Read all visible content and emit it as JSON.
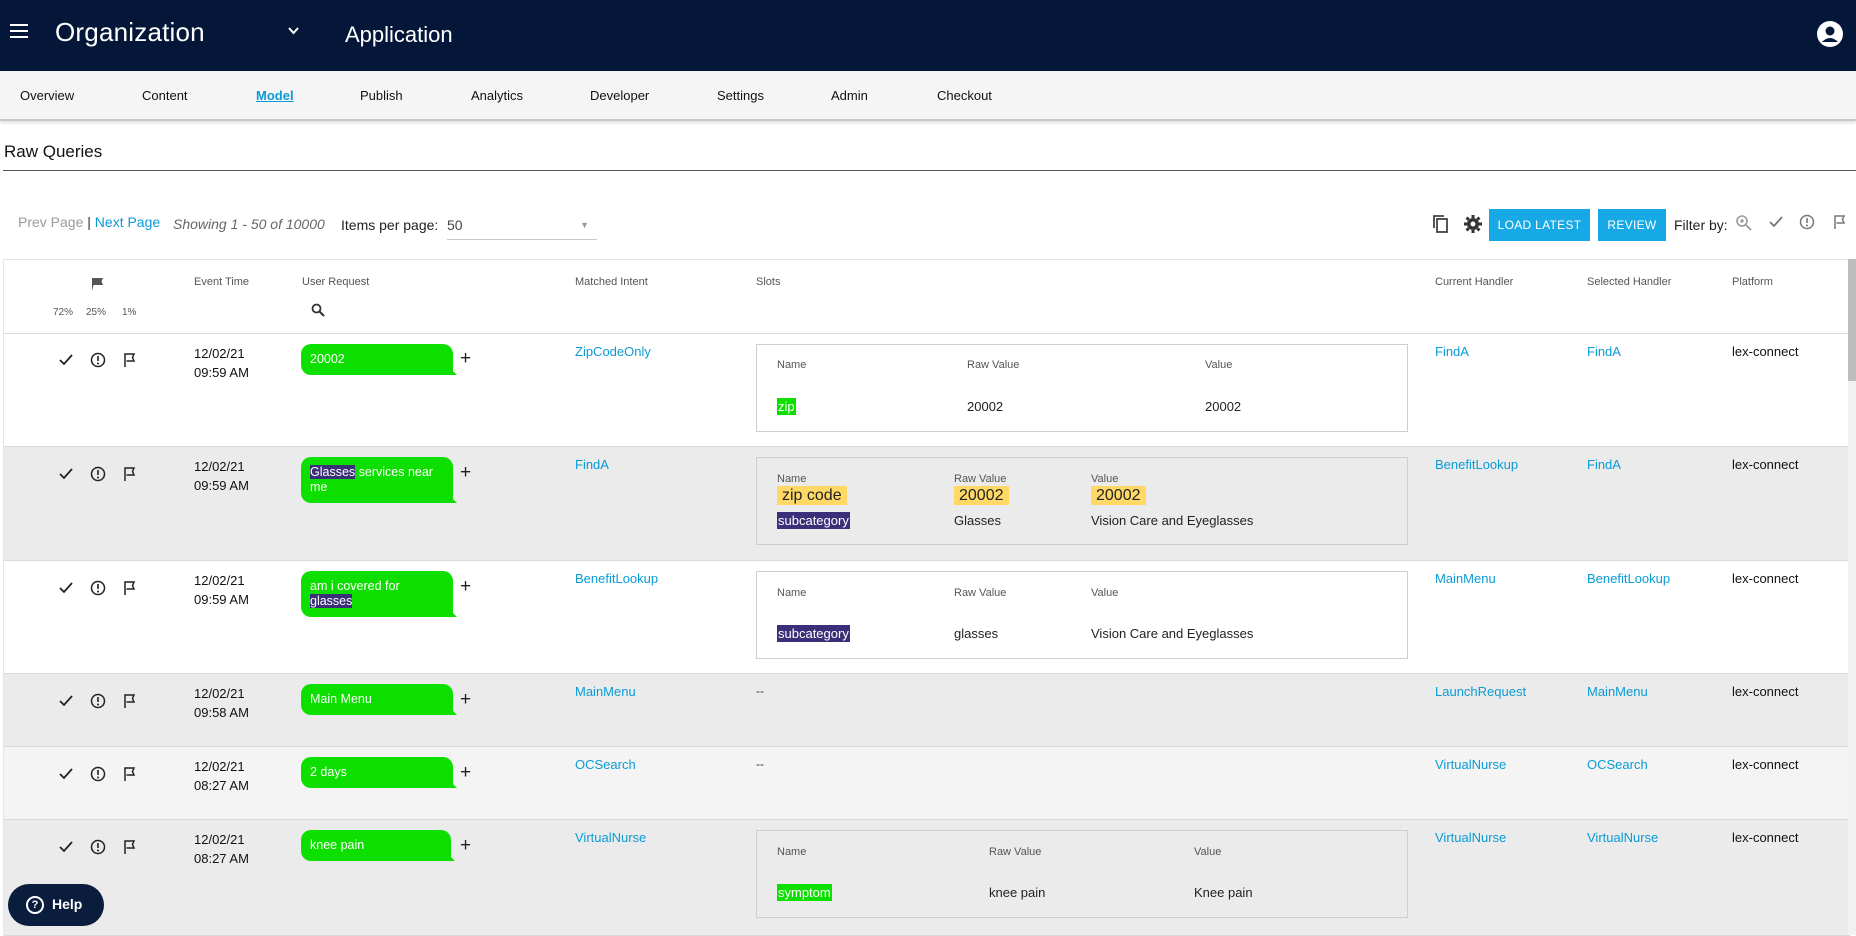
{
  "header": {
    "organization": "Organization",
    "application": "Application"
  },
  "nav": {
    "items": [
      "Overview",
      "Content",
      "Model",
      "Publish",
      "Analytics",
      "Developer",
      "Settings",
      "Admin",
      "Checkout"
    ],
    "active": "Model"
  },
  "page": {
    "title": "Raw Queries"
  },
  "toolbar": {
    "prev_label": "Prev Page",
    "separator": "|",
    "next_label": "Next Page",
    "showing": "Showing 1 - 50 of 10000",
    "items_per_page_label": "Items per page:",
    "items_per_page_value": "50",
    "load_latest_label": "LOAD LATEST",
    "review_label": "REVIEW",
    "filter_label": "Filter by:"
  },
  "table": {
    "headers": {
      "event_time": "Event Time",
      "user_request": "User Request",
      "matched_intent": "Matched Intent",
      "slots": "Slots",
      "current_handler": "Current Handler",
      "selected_handler": "Selected Handler",
      "platform": "Platform"
    },
    "flag_percentages": [
      "72%",
      "25%",
      "1%"
    ],
    "slot_headers": {
      "name": "Name",
      "raw_value": "Raw Value",
      "value": "Value"
    },
    "rows": [
      {
        "date": "12/02/21",
        "time": "09:59 AM",
        "request": "20002",
        "matched_intent": "ZipCodeOnly",
        "slots": [
          {
            "name": "zip",
            "raw_value": "20002",
            "value": "20002"
          }
        ],
        "current_handler": "FindA",
        "selected_handler": "FindA",
        "platform": "lex-connect"
      },
      {
        "date": "12/02/21",
        "time": "09:59 AM",
        "request_highlight": "Glasses",
        "request_rest": " services near me",
        "matched_intent": "FindA",
        "slots": [
          {
            "name": "zip code",
            "raw_value": "20002",
            "value": "20002"
          },
          {
            "name": "subcategory",
            "raw_value": "Glasses",
            "value": "Vision Care and Eyeglasses"
          }
        ],
        "current_handler": "BenefitLookup",
        "selected_handler": "FindA",
        "platform": "lex-connect"
      },
      {
        "date": "12/02/21",
        "time": "09:59 AM",
        "request_rest": "am i covered for ",
        "request_highlight": "glasses",
        "matched_intent": "BenefitLookup",
        "slots": [
          {
            "name": "subcategory",
            "raw_value": "glasses",
            "value": "Vision Care and Eyeglasses"
          }
        ],
        "current_handler": "MainMenu",
        "selected_handler": "BenefitLookup",
        "platform": "lex-connect"
      },
      {
        "date": "12/02/21",
        "time": "09:58 AM",
        "request": "Main Menu",
        "matched_intent": "MainMenu",
        "slots_empty": "--",
        "current_handler": "LaunchRequest",
        "selected_handler": "MainMenu",
        "platform": "lex-connect"
      },
      {
        "date": "12/02/21",
        "time": "08:27 AM",
        "request": "2 days",
        "matched_intent": "OCSearch",
        "slots_empty": "--",
        "current_handler": "VirtualNurse",
        "selected_handler": "OCSearch",
        "platform": "lex-connect"
      },
      {
        "date": "12/02/21",
        "time": "08:27 AM",
        "request": "knee pain",
        "matched_intent": "VirtualNurse",
        "slots": [
          {
            "name": "symptom",
            "raw_value": "knee pain",
            "value": "Knee pain"
          }
        ],
        "current_handler": "VirtualNurse",
        "selected_handler": "VirtualNurse",
        "platform": "lex-connect"
      }
    ]
  },
  "help": {
    "label": "Help"
  },
  "colors": {
    "header_bg": "#041738",
    "accent": "#17a9e6",
    "link": "#0a9bd6",
    "bubble_green": "#0ddf00",
    "slot_purple": "#3a2f79",
    "slot_yellow": "#ffd866"
  }
}
